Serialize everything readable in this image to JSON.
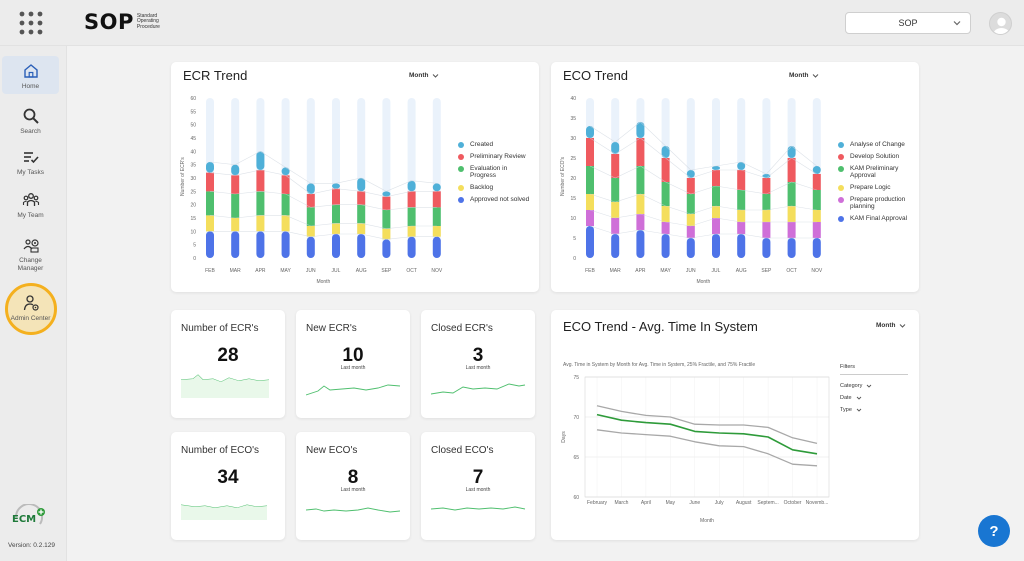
{
  "header": {
    "logo_main": "SOP",
    "logo_sub": "Standard Operating Procedure",
    "org_select_value": "SOP"
  },
  "sidebar": {
    "items": [
      {
        "label": "Home",
        "icon": "home-icon"
      },
      {
        "label": "Search",
        "icon": "search-icon"
      },
      {
        "label": "My Tasks",
        "icon": "tasks-icon"
      },
      {
        "label": "My Team",
        "icon": "team-icon"
      },
      {
        "label": "Change Manager",
        "icon": "change-manager-icon"
      },
      {
        "label": "Admin Center",
        "icon": "admin-center-icon"
      }
    ],
    "footer_logo": "ECM",
    "version": "Version: 0.2.129"
  },
  "ecr_trend": {
    "title": "ECR Trend",
    "period": "Month",
    "ylabel": "Number of ECR's",
    "xlabel": "Month",
    "legend": [
      "Created",
      "Preliminary Review",
      "Evaluation in Progress",
      "Backlog",
      "Approved not solved"
    ]
  },
  "eco_trend": {
    "title": "ECO Trend",
    "period": "Month",
    "ylabel": "Number of ECO's",
    "xlabel": "Month",
    "legend": [
      "Analyse of Change",
      "Develop Solution",
      "KAM Preliminary Approval",
      "Prepare Logic",
      "Prepare production planning",
      "KAM Final Approval"
    ]
  },
  "stats": [
    {
      "label": "Number of ECR's",
      "value": "28",
      "sub": ""
    },
    {
      "label": "New ECR's",
      "value": "10",
      "sub": "Last month"
    },
    {
      "label": "Closed ECR's",
      "value": "3",
      "sub": "Last month"
    },
    {
      "label": "Number of ECO's",
      "value": "34",
      "sub": ""
    },
    {
      "label": "New ECO's",
      "value": "8",
      "sub": "Last month"
    },
    {
      "label": "Closed ECO's",
      "value": "7",
      "sub": "Last month"
    }
  ],
  "avg_time": {
    "title": "ECO Trend - Avg. Time In System",
    "period": "Month",
    "legend_text": "Avg. Time in System by Month for Avg. Time in System, 25% Fractile, and 75% Fractile",
    "ylabel": "Days",
    "xlabel": "Month",
    "filters_title": "Filters",
    "filters": [
      "Category",
      "Date",
      "Type"
    ]
  },
  "colors": {
    "blue": "#4e73e8",
    "yellow": "#f4de5c",
    "green": "#4fbf6e",
    "red": "#ef5a5f",
    "teal": "#4fb0d8",
    "purple": "#cf6fd8",
    "line_green": "#2e9b3a",
    "fractile_gray": "#a8a8a8",
    "accent": "#1976d2",
    "highlight": "#f4b01e"
  },
  "chart_data": [
    {
      "type": "bar",
      "stacked": true,
      "title": "ECR Trend",
      "xlabel": "Month",
      "ylabel": "Number of ECR's",
      "ylim": [
        0,
        60
      ],
      "yticks": [
        "0",
        "5",
        "10",
        "15",
        "20",
        "25",
        "30",
        "35",
        "40",
        "45",
        "50",
        "55",
        "60"
      ],
      "categories": [
        "FEB",
        "MAR",
        "APR",
        "MAY",
        "JUN",
        "JUL",
        "AUG",
        "SEP",
        "OCT",
        "NOV"
      ],
      "series": [
        {
          "name": "Approved not solved",
          "values": [
            10,
            10,
            10,
            10,
            8,
            9,
            9,
            7,
            8,
            8
          ]
        },
        {
          "name": "Backlog",
          "values": [
            6,
            5,
            6,
            6,
            4,
            4,
            4,
            4,
            4,
            4
          ]
        },
        {
          "name": "Evaluation in Progress",
          "values": [
            9,
            9,
            9,
            8,
            7,
            7,
            7,
            7,
            7,
            7
          ]
        },
        {
          "name": "Preliminary Review",
          "values": [
            7,
            7,
            8,
            7,
            5,
            6,
            5,
            5,
            6,
            6
          ]
        },
        {
          "name": "Created",
          "values": [
            4,
            4,
            7,
            3,
            4,
            2,
            5,
            2,
            4,
            3
          ]
        }
      ]
    },
    {
      "type": "bar",
      "stacked": true,
      "title": "ECO Trend",
      "xlabel": "Month",
      "ylabel": "Number of ECO's",
      "ylim": [
        0,
        40
      ],
      "yticks": [
        "0",
        "5",
        "10",
        "15",
        "20",
        "25",
        "30",
        "35",
        "40"
      ],
      "categories": [
        "FEB",
        "MAR",
        "APR",
        "MAY",
        "JUN",
        "JUL",
        "AUG",
        "SEP",
        "OCT",
        "NOV"
      ],
      "series": [
        {
          "name": "KAM Final Approval",
          "values": [
            8,
            6,
            7,
            6,
            5,
            6,
            6,
            5,
            5,
            5
          ]
        },
        {
          "name": "Prepare production planning",
          "values": [
            4,
            4,
            4,
            3,
            3,
            4,
            3,
            4,
            4,
            4
          ]
        },
        {
          "name": "Prepare Logic",
          "values": [
            4,
            4,
            5,
            4,
            3,
            3,
            3,
            3,
            4,
            3
          ]
        },
        {
          "name": "KAM Preliminary Approval",
          "values": [
            7,
            6,
            7,
            6,
            5,
            5,
            5,
            4,
            6,
            5
          ]
        },
        {
          "name": "Develop Solution",
          "values": [
            7,
            6,
            7,
            6,
            4,
            4,
            5,
            4,
            6,
            4
          ]
        },
        {
          "name": "Analyse of Change",
          "values": [
            3,
            3,
            4,
            3,
            2,
            1,
            2,
            1,
            3,
            2
          ]
        }
      ]
    },
    {
      "type": "line",
      "title": "ECO Trend - Avg. Time In System",
      "xlabel": "Month",
      "ylabel": "Days",
      "ylim": [
        60,
        75
      ],
      "yticks": [
        "60",
        "65",
        "70",
        "75"
      ],
      "categories": [
        "February",
        "March",
        "April",
        "May",
        "June",
        "July",
        "August",
        "Septem...",
        "October",
        "Novemb..."
      ],
      "series": [
        {
          "name": "Avg. Time in System",
          "values": [
            70.3,
            69.6,
            69.3,
            69.1,
            68.2,
            68.0,
            67.9,
            67.5,
            65.9,
            65.4
          ]
        },
        {
          "name": "25% Fractile",
          "values": [
            68.4,
            68.0,
            67.8,
            67.6,
            66.9,
            66.4,
            66.3,
            65.4,
            64.1,
            63.9
          ]
        },
        {
          "name": "75% Fractile",
          "values": [
            71.4,
            70.7,
            70.2,
            70.0,
            69.1,
            69.0,
            69.0,
            68.7,
            67.4,
            66.7
          ]
        }
      ]
    }
  ]
}
